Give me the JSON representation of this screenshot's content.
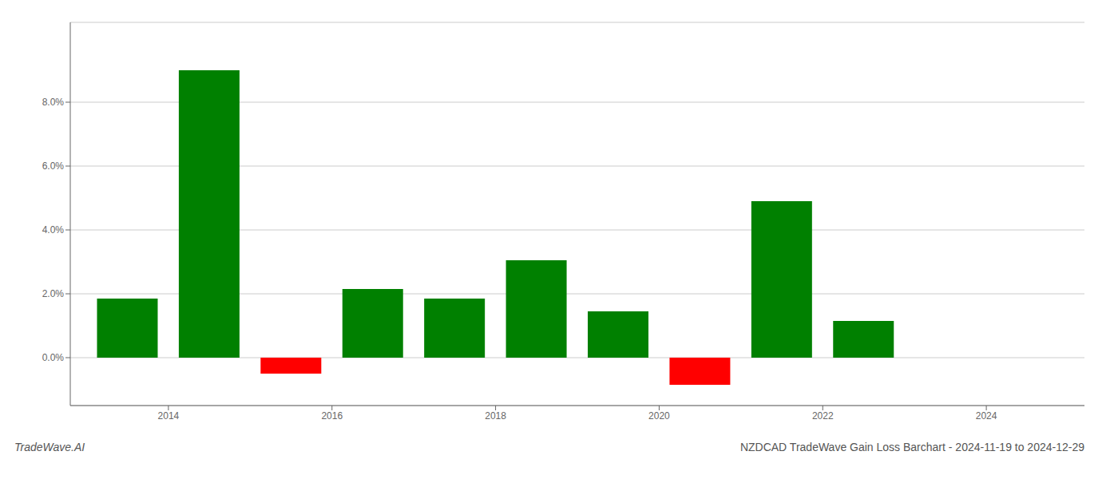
{
  "chart_data": {
    "type": "bar",
    "title": "NZDCAD TradeWave Gain Loss Barchart - 2024-11-19 to 2024-12-29",
    "annotations": [
      "TradeWave.AI"
    ],
    "x": [
      2013.5,
      2014.5,
      2015.5,
      2016.5,
      2017.5,
      2018.5,
      2019.5,
      2020.5,
      2021.5,
      2022.5
    ],
    "values": [
      0.0185,
      0.09,
      -0.005,
      0.0215,
      0.0185,
      0.0305,
      0.0145,
      -0.0085,
      0.049,
      0.0115
    ],
    "colors": [
      "#008000",
      "#008000",
      "#ff0000",
      "#008000",
      "#008000",
      "#008000",
      "#008000",
      "#ff0000",
      "#008000",
      "#008000"
    ],
    "xlim": [
      2012.8,
      2025.2
    ],
    "xticks": [
      2014,
      2016,
      2018,
      2020,
      2022,
      2024
    ],
    "ylim": [
      -0.015,
      0.105
    ],
    "yticks": [
      {
        "value": 0.0,
        "label": "0.0%"
      },
      {
        "value": 0.02,
        "label": "2.0%"
      },
      {
        "value": 0.04,
        "label": "4.0%"
      },
      {
        "value": 0.06,
        "label": "6.0%"
      },
      {
        "value": 0.08,
        "label": "8.0%"
      }
    ],
    "grid": true
  }
}
